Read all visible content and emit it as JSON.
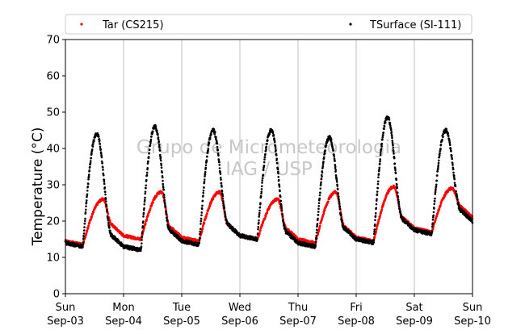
{
  "chart_data": {
    "type": "scatter",
    "ylabel": "Temperature (°C)",
    "xlabel": "",
    "ylim": [
      0,
      70
    ],
    "yticks": [
      0,
      10,
      20,
      30,
      40,
      50,
      60,
      70
    ],
    "xlim": [
      0,
      7
    ],
    "grid": "vertical-only",
    "legend_placement": "top",
    "watermark": [
      "Grupo de Micrometeorologia",
      "IAG / USP"
    ],
    "x_ticks": [
      {
        "day": "Sun",
        "date": "Sep-03"
      },
      {
        "day": "Mon",
        "date": "Sep-04"
      },
      {
        "day": "Tue",
        "date": "Sep-05"
      },
      {
        "day": "Wed",
        "date": "Sep-06"
      },
      {
        "day": "Thu",
        "date": "Sep-07"
      },
      {
        "day": "Fri",
        "date": "Sep-08"
      },
      {
        "day": "Sat",
        "date": "Sep-09"
      },
      {
        "day": "Sun",
        "date": "Sep-10"
      }
    ],
    "series": [
      {
        "name": "Tar (CS215)",
        "color": "#ff0000",
        "daily_min": [
          13.5,
          15.0,
          14.5,
          15.0,
          14.0,
          14.5,
          17.0,
          20.0
        ],
        "daily_max": [
          26,
          28,
          28,
          26,
          28,
          29.5,
          29
        ],
        "peak_time_frac": 0.65
      },
      {
        "name": "TSurface (SI-111)",
        "color": "#000000",
        "daily_min": [
          13.0,
          12.0,
          13.5,
          15.0,
          13.0,
          14.0,
          16.5,
          19.0
        ],
        "daily_max": [
          44,
          46,
          45,
          45,
          43,
          48.5,
          45
        ],
        "peak_time_frac": 0.54
      }
    ]
  }
}
